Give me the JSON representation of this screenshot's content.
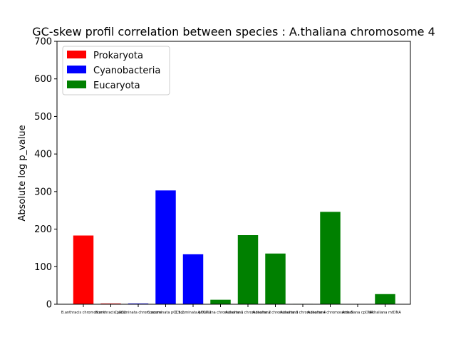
{
  "chart_data": {
    "type": "bar",
    "title": "GC-skew profil correlation between species : A.thaliana chromosome 4",
    "xlabel": "",
    "ylabel": "Absolute log p_value",
    "ylim": [
      0,
      700
    ],
    "yticks": [
      "0",
      "100",
      "200",
      "300",
      "400",
      "500",
      "600",
      "700"
    ],
    "grid": false,
    "legend_position": "top-left",
    "categories": [
      "B.anthracis chromosome",
      "B.anthracis pXO1",
      "C.acuminata chromosome",
      "C.acuminata pCC5.2",
      "C.acuminata pCC7.2",
      "A.thaliana chromosome 1",
      "A.thaliana chromosome 2",
      "A.thaliana chromosome 3",
      "A.thaliana chromosome 4",
      "A.thaliana chromosome 5",
      "A.thaliana cpDNA",
      "A.thaliana mtDNA"
    ],
    "values": [
      183,
      2,
      2,
      303,
      133,
      12,
      184,
      135,
      1,
      246,
      0,
      27
    ],
    "groups": [
      "Prokaryota",
      "Prokaryota",
      "Cyanobacteria",
      "Cyanobacteria",
      "Cyanobacteria",
      "Eucaryota",
      "Eucaryota",
      "Eucaryota",
      "Eucaryota",
      "Eucaryota",
      "Eucaryota",
      "Eucaryota"
    ],
    "legend": [
      {
        "label": "Prokaryota",
        "color": "#ff0000"
      },
      {
        "label": "Cyanobacteria",
        "color": "#0000ff"
      },
      {
        "label": "Eucaryota",
        "color": "#008000"
      }
    ]
  }
}
